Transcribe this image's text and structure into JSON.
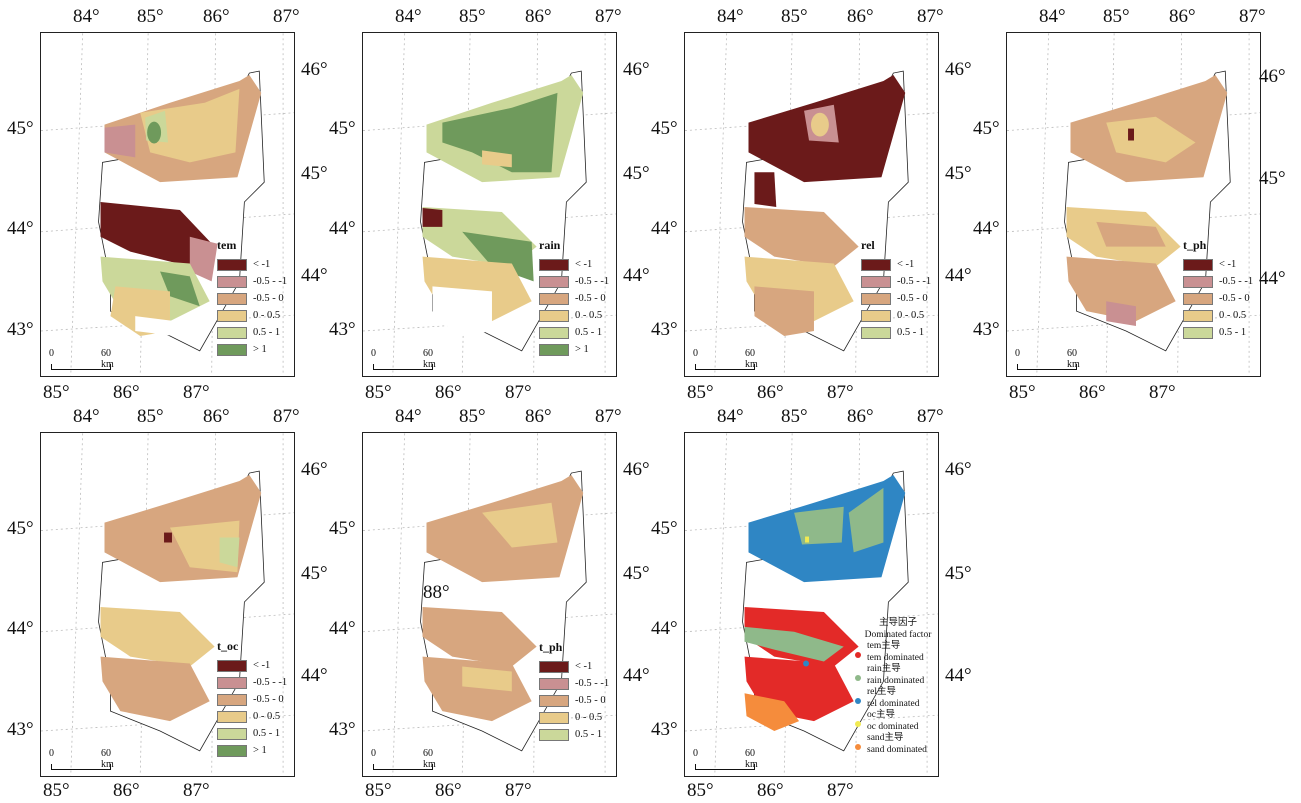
{
  "lon_labels": [
    "84°",
    "85°",
    "86°",
    "87°"
  ],
  "lat_labels": [
    "45°",
    "44°",
    "43°"
  ],
  "right_lat_labels": [
    "46°",
    "45°",
    "44°"
  ],
  "bottom_lon_labels": [
    "85°",
    "86°",
    "87°"
  ],
  "stray_label": "88°",
  "scale_bar": {
    "zero": "0",
    "dist": "60 km"
  },
  "colors": {
    "lt_neg1": "#6b1a1a",
    "neg05_neg1": "#c99092",
    "neg05_0": "#d7a67f",
    "z_05": "#e8cb8a",
    "z05_1": "#cbd89a",
    "gt1": "#6f9a5c"
  },
  "panels": [
    {
      "id": "tem",
      "title": "tem",
      "items": [
        "< -1",
        "-0.5 - -1",
        "-0.5 - 0",
        "0 - 0.5",
        "0.5 - 1",
        "> 1"
      ]
    },
    {
      "id": "rain",
      "title": "rain",
      "items": [
        "< -1",
        "-0.5 - -1",
        "-0.5 - 0",
        "0 - 0.5",
        "0.5 - 1",
        "> 1"
      ]
    },
    {
      "id": "rel",
      "title": "rel",
      "items": [
        "< -1",
        "-0.5 - -1",
        "-0.5 - 0",
        "0 - 0.5",
        "0.5 - 1"
      ]
    },
    {
      "id": "t_ph",
      "title": "t_ph",
      "items": [
        "< -1",
        "-0.5 - -1",
        "-0.5 - 0",
        "0 - 0.5",
        "0.5 - 1"
      ]
    },
    {
      "id": "t_oc",
      "title": "t_oc",
      "items": [
        "< -1",
        "-0.5 - -1",
        "-0.5 - 0",
        "0 - 0.5",
        "0.5 - 1",
        "> 1"
      ]
    },
    {
      "id": "t_ph2",
      "title": "t_ph",
      "items": [
        "< -1",
        "-0.5 - -1",
        "-0.5 - 0",
        "0 - 0.5",
        "0.5 - 1"
      ]
    }
  ],
  "dominated": {
    "title_cn": "主导因子",
    "title_en": "Dominated factor",
    "items": [
      {
        "cn": "tem主导",
        "en": "tem dominated",
        "color": "#e32a28"
      },
      {
        "cn": "rain主导",
        "en": "rain dominated",
        "color": "#8fb98a"
      },
      {
        "cn": "rel主导",
        "en": "rel dominated",
        "color": "#2f86c4"
      },
      {
        "cn": "oc主导",
        "en": "oc dominated",
        "color": "#f1ea52"
      },
      {
        "cn": "sand主导",
        "en": "sand dominated",
        "color": "#f58c3c"
      }
    ]
  }
}
